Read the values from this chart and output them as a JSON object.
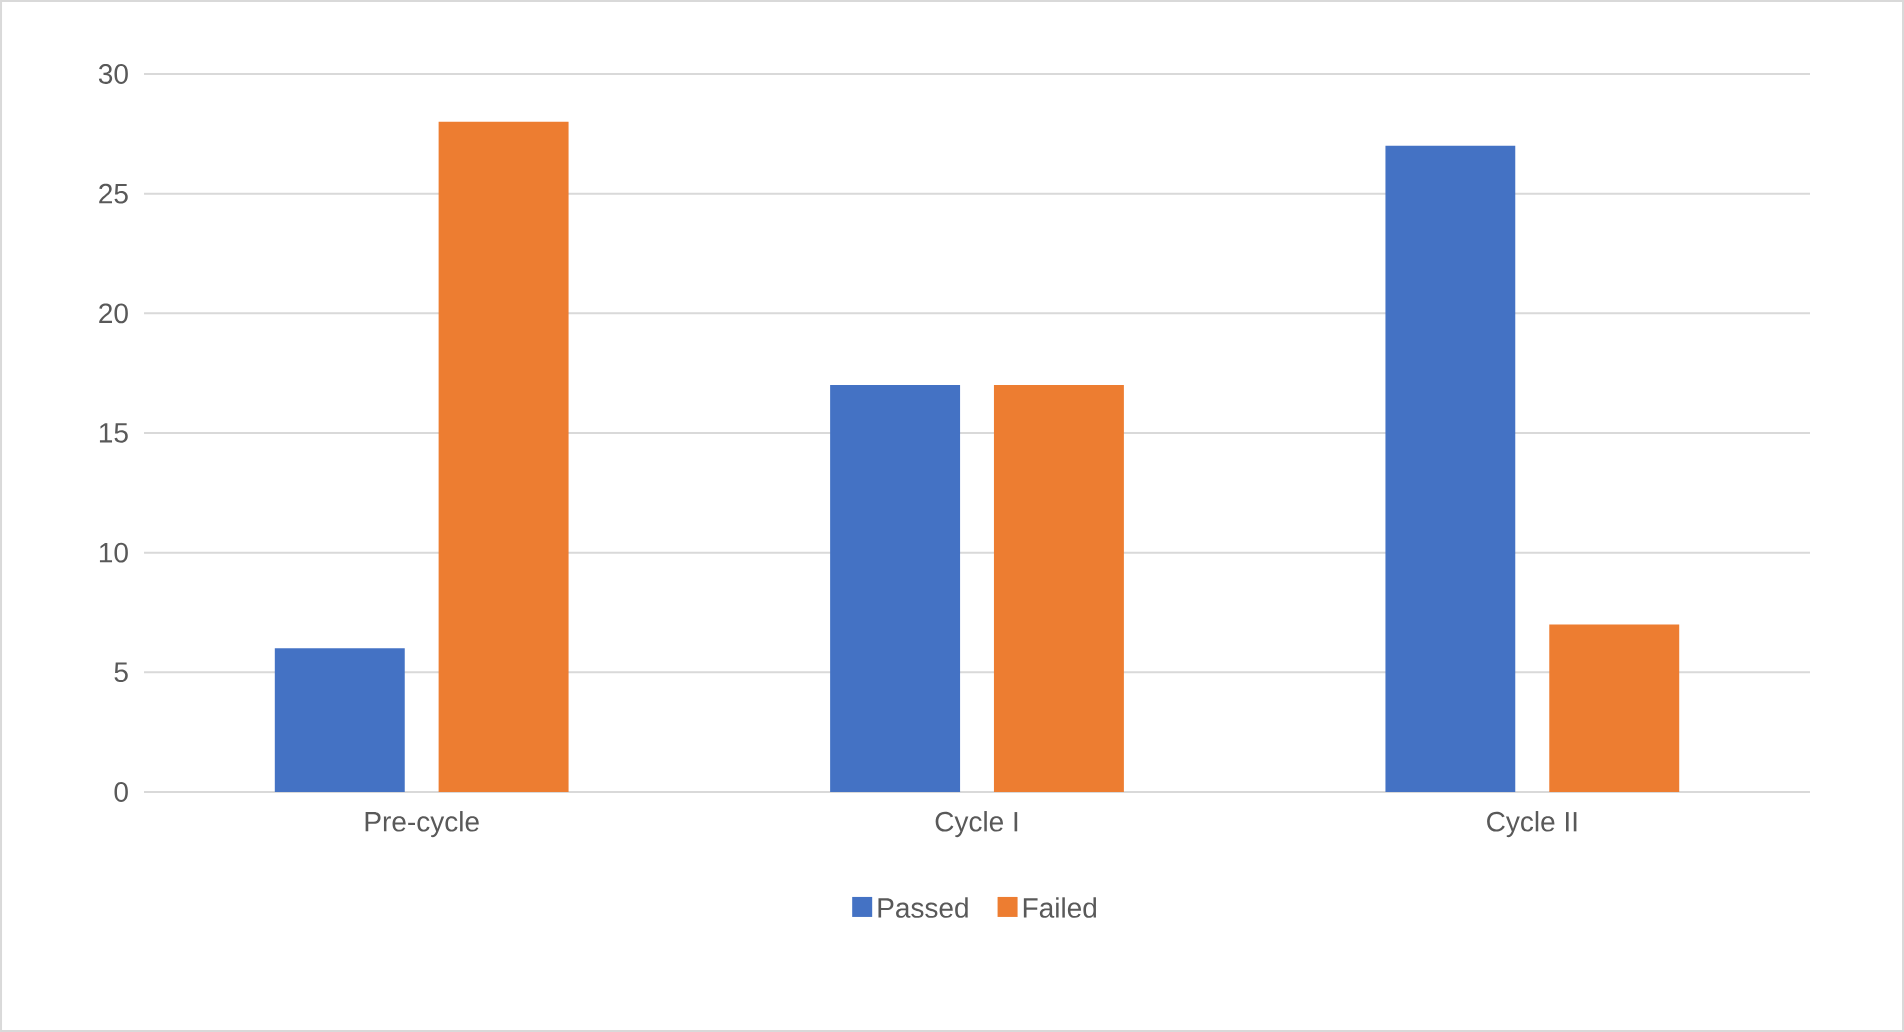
{
  "chart_data": {
    "type": "bar",
    "categories": [
      "Pre-cycle",
      "Cycle I",
      "Cycle II"
    ],
    "series": [
      {
        "name": "Passed",
        "color": "#4472c4",
        "values": [
          6,
          17,
          27
        ]
      },
      {
        "name": "Failed",
        "color": "#ed7d31",
        "values": [
          28,
          17,
          7
        ]
      }
    ],
    "ylim": [
      0,
      30
    ],
    "yticks": [
      0,
      5,
      10,
      15,
      20,
      25,
      30
    ],
    "grid": "y",
    "legend": "bottom"
  }
}
